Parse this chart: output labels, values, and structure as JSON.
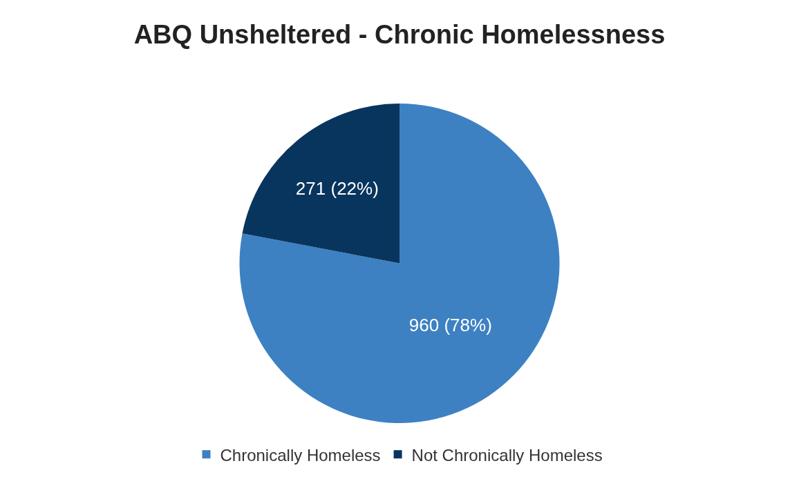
{
  "chart_data": {
    "type": "pie",
    "title": "ABQ Unsheltered - Chronic Homelessness",
    "categories": [
      "Chronically Homeless",
      "Not Chronically Homeless"
    ],
    "values": [
      960,
      271
    ],
    "colors": [
      "#3d81c3",
      "#08355e"
    ],
    "value_labels": [
      "960 (78%)",
      "271 (22%)"
    ],
    "legend": "bottom"
  }
}
